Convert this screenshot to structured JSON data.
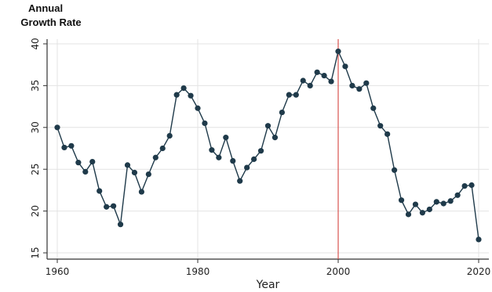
{
  "chart_data": {
    "type": "line",
    "ylabel_lines": [
      "Annual",
      "Growth Rate"
    ],
    "xlabel": "Year",
    "title": "",
    "xlim": [
      1960,
      2020
    ],
    "ylim": [
      15,
      40
    ],
    "xticks": [
      1960,
      1980,
      2000,
      2020
    ],
    "xtick_labels": [
      "1960",
      "1980",
      "2000",
      "2020"
    ],
    "yticks": [
      15,
      20,
      25,
      30,
      35,
      40
    ],
    "ytick_labels": [
      "15",
      "20",
      "25",
      "30",
      "35",
      "40"
    ],
    "grid": true,
    "reference_line": {
      "x": 2000
    },
    "colors": {
      "line": "#1f3a4a",
      "marker": "#1f3a4a",
      "reference_line": "#d9534f",
      "grid": "#e3e3e3",
      "axis": "#333333"
    },
    "series": [
      {
        "x": [
          1960,
          1961,
          1962,
          1963,
          1964,
          1965,
          1966,
          1967,
          1968,
          1969,
          1970,
          1971,
          1972,
          1973,
          1974,
          1975,
          1976,
          1977,
          1978,
          1979,
          1980,
          1981,
          1982,
          1983,
          1984,
          1985,
          1986,
          1987,
          1988,
          1989,
          1990,
          1991,
          1992,
          1993,
          1994,
          1995,
          1996,
          1997,
          1998,
          1999,
          2000,
          2001,
          2002,
          2003,
          2004,
          2005,
          2006,
          2007,
          2008,
          2009,
          2010,
          2011,
          2012,
          2013,
          2014,
          2015,
          2016,
          2017,
          2018,
          2019,
          2020
        ],
        "values": [
          30.0,
          27.6,
          27.8,
          25.8,
          24.7,
          25.9,
          22.4,
          20.5,
          20.6,
          18.4,
          25.5,
          24.6,
          22.3,
          24.4,
          26.4,
          27.5,
          29.0,
          33.9,
          34.7,
          33.8,
          32.3,
          30.5,
          27.3,
          26.4,
          28.8,
          26.0,
          23.6,
          25.2,
          26.2,
          27.2,
          30.2,
          28.8,
          31.8,
          33.9,
          33.9,
          35.6,
          35.0,
          36.6,
          36.2,
          35.5,
          39.1,
          37.3,
          35.0,
          34.6,
          35.3,
          32.3,
          30.2,
          29.2,
          24.9,
          21.3,
          19.6,
          20.8,
          19.8,
          20.2,
          21.1,
          20.9,
          21.2,
          21.9,
          23.0,
          23.1,
          16.6
        ]
      }
    ]
  }
}
